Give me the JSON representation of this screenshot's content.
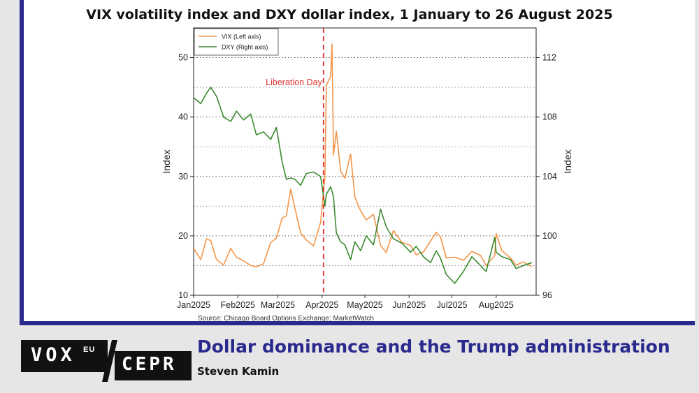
{
  "chart_data": {
    "type": "line",
    "title": "VIX volatility index and DXY dollar index, 1 January to 26 August 2025",
    "ylabel_left": "Index",
    "ylabel_right": "Index",
    "ylim_left": [
      10,
      55
    ],
    "ylim_right": [
      96,
      114
    ],
    "yticks_left": [
      "10",
      "20",
      "30",
      "40",
      "50"
    ],
    "yticks_right": [
      "96",
      "100",
      "104",
      "108",
      "112"
    ],
    "xticks": [
      "Jan2025",
      "Feb2025",
      "Mar2025",
      "Apr2025",
      "May2025",
      "Jun2025",
      "Jul2025",
      "Aug2025"
    ],
    "grid": "horizontal dotted",
    "legend_position": "top-left",
    "annotation": {
      "label": "Liberation Day",
      "date": "2025-04-02"
    },
    "source": "Source: Chicago Board Options Exchange; MarketWatch",
    "series": [
      {
        "name": "VIX (Left axis)",
        "axis": "left",
        "color": "#f4964a",
        "dates": [
          "2025-01-01",
          "2025-01-06",
          "2025-01-10",
          "2025-01-13",
          "2025-01-17",
          "2025-01-22",
          "2025-01-27",
          "2025-01-31",
          "2025-02-05",
          "2025-02-10",
          "2025-02-14",
          "2025-02-19",
          "2025-02-24",
          "2025-02-28",
          "2025-03-04",
          "2025-03-07",
          "2025-03-10",
          "2025-03-13",
          "2025-03-17",
          "2025-03-21",
          "2025-03-26",
          "2025-03-31",
          "2025-04-03",
          "2025-04-04",
          "2025-04-07",
          "2025-04-08",
          "2025-04-09",
          "2025-04-11",
          "2025-04-14",
          "2025-04-17",
          "2025-04-21",
          "2025-04-24",
          "2025-04-28",
          "2025-05-02",
          "2025-05-07",
          "2025-05-12",
          "2025-05-16",
          "2025-05-21",
          "2025-05-27",
          "2025-06-02",
          "2025-06-06",
          "2025-06-11",
          "2025-06-16",
          "2025-06-20",
          "2025-06-23",
          "2025-06-27",
          "2025-07-03",
          "2025-07-09",
          "2025-07-15",
          "2025-07-21",
          "2025-07-25",
          "2025-07-31",
          "2025-08-01",
          "2025-08-05",
          "2025-08-11",
          "2025-08-15",
          "2025-08-20",
          "2025-08-26"
        ],
        "values": [
          17.9,
          16.0,
          19.5,
          19.2,
          16.0,
          15.1,
          17.9,
          16.4,
          15.8,
          15.0,
          14.8,
          15.3,
          18.9,
          19.6,
          23.0,
          23.4,
          27.9,
          24.6,
          20.5,
          19.3,
          18.3,
          22.3,
          30.0,
          45.3,
          46.9,
          52.3,
          33.6,
          37.6,
          30.9,
          29.7,
          33.8,
          26.5,
          24.2,
          22.7,
          23.6,
          18.4,
          17.2,
          20.9,
          18.9,
          18.4,
          16.8,
          17.3,
          19.1,
          20.6,
          19.8,
          16.3,
          16.4,
          15.9,
          17.4,
          16.7,
          15.0,
          16.7,
          20.4,
          17.5,
          16.3,
          15.1,
          15.6,
          14.8
        ]
      },
      {
        "name": "DXY (Right axis)",
        "axis": "right",
        "color": "#3a8a2e",
        "dates": [
          "2025-01-01",
          "2025-01-06",
          "2025-01-10",
          "2025-01-13",
          "2025-01-17",
          "2025-01-22",
          "2025-01-27",
          "2025-01-31",
          "2025-02-05",
          "2025-02-10",
          "2025-02-14",
          "2025-02-19",
          "2025-02-24",
          "2025-02-28",
          "2025-03-04",
          "2025-03-07",
          "2025-03-10",
          "2025-03-13",
          "2025-03-17",
          "2025-03-21",
          "2025-03-26",
          "2025-03-31",
          "2025-04-03",
          "2025-04-04",
          "2025-04-07",
          "2025-04-08",
          "2025-04-09",
          "2025-04-11",
          "2025-04-14",
          "2025-04-17",
          "2025-04-21",
          "2025-04-24",
          "2025-04-28",
          "2025-05-02",
          "2025-05-07",
          "2025-05-12",
          "2025-05-16",
          "2025-05-21",
          "2025-05-27",
          "2025-06-02",
          "2025-06-06",
          "2025-06-11",
          "2025-06-16",
          "2025-06-20",
          "2025-06-23",
          "2025-06-27",
          "2025-07-03",
          "2025-07-09",
          "2025-07-15",
          "2025-07-21",
          "2025-07-25",
          "2025-07-31",
          "2025-08-01",
          "2025-08-05",
          "2025-08-11",
          "2025-08-15",
          "2025-08-20",
          "2025-08-26"
        ],
        "values": [
          109.3,
          108.9,
          109.6,
          110.0,
          109.4,
          108.0,
          107.7,
          108.4,
          107.8,
          108.2,
          106.8,
          107.0,
          106.5,
          107.3,
          105.0,
          103.8,
          103.9,
          103.8,
          103.4,
          104.2,
          104.3,
          104.0,
          102.0,
          102.8,
          103.3,
          103.0,
          102.6,
          100.2,
          99.6,
          99.4,
          98.4,
          99.6,
          99.0,
          100.0,
          99.4,
          101.8,
          100.6,
          99.8,
          99.5,
          98.9,
          99.3,
          98.6,
          98.2,
          99.0,
          98.5,
          97.4,
          96.8,
          97.6,
          98.6,
          98.0,
          97.6,
          99.9,
          98.9,
          98.6,
          98.4,
          97.8,
          98.0,
          98.2
        ]
      }
    ]
  },
  "footer": {
    "logo_vox": "VOX",
    "logo_eu": "EU",
    "logo_cepr": "CEPR",
    "headline": "Dollar dominance and the Trump administration",
    "author": "Steven Kamin"
  }
}
